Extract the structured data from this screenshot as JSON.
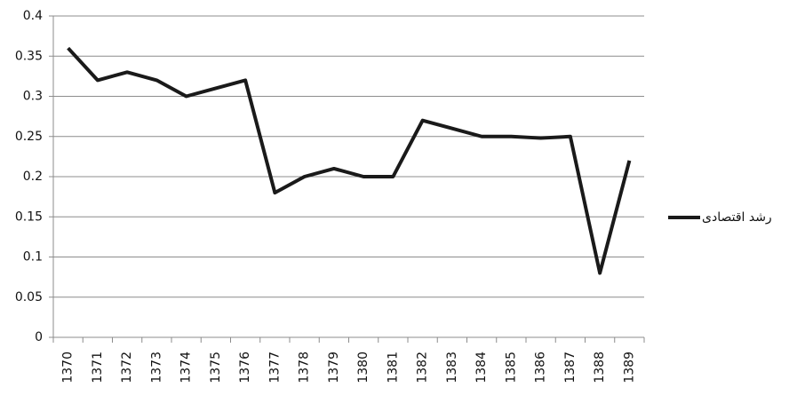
{
  "chart_data": {
    "type": "line",
    "categories": [
      "1370",
      "1371",
      "1372",
      "1373",
      "1374",
      "1375",
      "1376",
      "1377",
      "1378",
      "1379",
      "1380",
      "1381",
      "1382",
      "1383",
      "1384",
      "1385",
      "1386",
      "1387",
      "1388",
      "1389"
    ],
    "series": [
      {
        "name": "رشد اقتصادی",
        "color": "#1a1a1a",
        "values": [
          0.36,
          0.32,
          0.33,
          0.32,
          0.3,
          0.31,
          0.32,
          0.18,
          0.2,
          0.21,
          0.2,
          0.2,
          0.27,
          0.26,
          0.25,
          0.25,
          0.248,
          0.25,
          0.08,
          0.22
        ]
      }
    ],
    "ylim": [
      0,
      0.4
    ],
    "yticks": [
      0,
      0.05,
      0.1,
      0.15,
      0.2,
      0.25,
      0.3,
      0.35,
      0.4
    ],
    "grid": true,
    "legend": "right"
  }
}
